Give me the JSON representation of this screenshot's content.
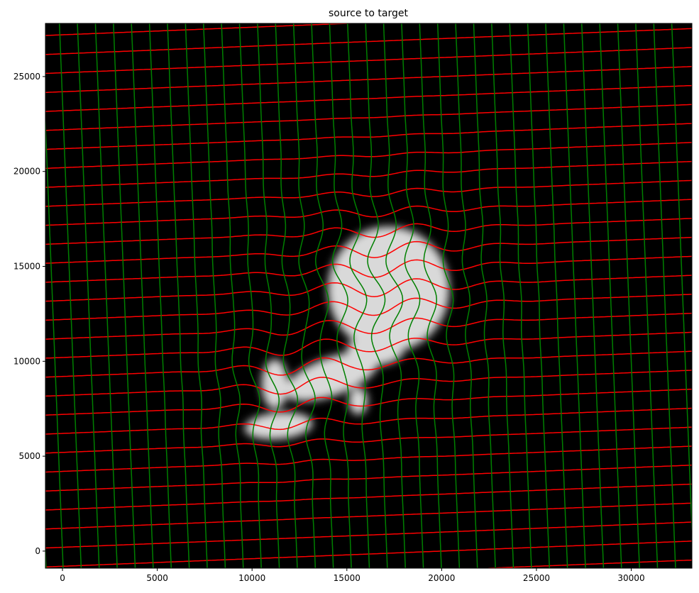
{
  "chart_data": {
    "type": "image-with-deformation-grid",
    "title": "source to target",
    "xlabel": "",
    "ylabel": "",
    "xlim": [
      -900,
      33200
    ],
    "ylim": [
      -900,
      27800
    ],
    "x_ticks": [
      0,
      5000,
      10000,
      15000,
      20000,
      25000,
      30000
    ],
    "y_ticks": [
      0,
      5000,
      10000,
      15000,
      20000,
      25000
    ],
    "grid": false,
    "background_color": "#000000",
    "grid_colors": {
      "horizontal_lines": "#ff0000",
      "vertical_lines": "#008000"
    },
    "tissue_color": "#d9d9d9",
    "deformation_grid": {
      "line_spacing": 1000,
      "h_line_slope": 0.04,
      "h_line_base_y_at_x0": [
        -1800,
        -800,
        200,
        1200,
        2200,
        3200,
        4200,
        5200,
        6200,
        7200,
        8200,
        9200,
        10200,
        11200,
        12200,
        13200,
        14200,
        15200,
        16200,
        17200,
        18200,
        19200,
        20200,
        21200,
        22200,
        23200,
        24200,
        25200,
        26200,
        27200
      ],
      "v_line_tilt": -0.04,
      "v_line_base_x_at_y0": [
        -900,
        0,
        950,
        1900,
        2850,
        3800,
        4750,
        5700,
        6650,
        7600,
        8550,
        9500,
        10450,
        11400,
        12350,
        13300,
        14250,
        15200,
        16150,
        17100,
        18050,
        19000,
        19950,
        20900,
        21850,
        22800,
        23750,
        24700,
        25650,
        26600,
        27550,
        28500,
        29450,
        30400,
        31350,
        32300,
        33250
      ]
    },
    "tissue_blobs": [
      {
        "cx": 17200,
        "cy": 13800,
        "rx": 3200,
        "ry": 3300,
        "rot": 0
      },
      {
        "cx": 14200,
        "cy": 9200,
        "rx": 2600,
        "ry": 1000,
        "rot": 20
      },
      {
        "cx": 11200,
        "cy": 8800,
        "rx": 700,
        "ry": 1300,
        "rot": 0
      },
      {
        "cx": 11400,
        "cy": 6600,
        "rx": 1800,
        "ry": 700,
        "rot": 5
      },
      {
        "cx": 15600,
        "cy": 7900,
        "rx": 500,
        "ry": 700,
        "rot": 0
      },
      {
        "cx": 16500,
        "cy": 10600,
        "rx": 1500,
        "ry": 800,
        "rot": 0
      }
    ],
    "warp_centers": [
      {
        "cx": 17000,
        "cy": 13500,
        "amp": 450,
        "radius": 3500
      },
      {
        "cx": 12500,
        "cy": 8500,
        "amp": 400,
        "radius": 2500
      }
    ]
  }
}
